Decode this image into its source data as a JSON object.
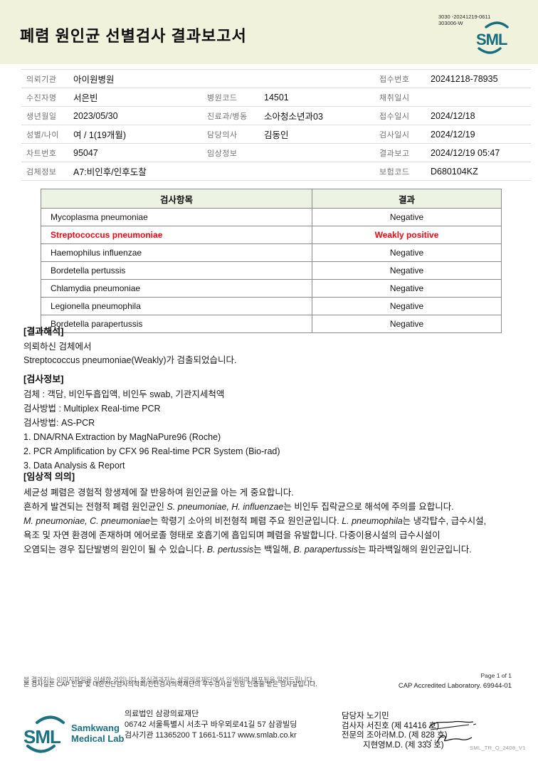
{
  "header": {
    "title": "폐렴 원인균 선별검사 결과보고서",
    "doc_code_line1": "3030 -20241219-0611",
    "doc_code_line2": "303006-W",
    "logo_text": "SML",
    "brand_color": "#156e7f",
    "band_color": "#f0f2db"
  },
  "patient_info": {
    "rows": [
      {
        "c1l": "의뢰기관",
        "c1v": "아이원병원",
        "c2l": "",
        "c2v": "",
        "c3l": "접수번호",
        "c3v": "20241218-78935"
      },
      {
        "c1l": "수진자명",
        "c1v": "서은빈",
        "c2l": "병원코드",
        "c2v": "14501",
        "c3l": "채취일시",
        "c3v": ""
      },
      {
        "c1l": "생년월일",
        "c1v": "2023/05/30",
        "c2l": "진료과/병동",
        "c2v": "소아청소년과03",
        "c3l": "접수일시",
        "c3v": "2024/12/18"
      },
      {
        "c1l": "성별/나이",
        "c1v": "여 / 1(19개월)",
        "c2l": "담당의사",
        "c2v": "김동인",
        "c3l": "검사일시",
        "c3v": "2024/12/19"
      },
      {
        "c1l": "차트번호",
        "c1v": "95047",
        "c2l": "임상정보",
        "c2v": "",
        "c3l": "결과보고",
        "c3v": "2024/12/19 05:47"
      },
      {
        "c1l": "검체정보",
        "c1v": "A7:비인후/인후도찰",
        "c2l": "",
        "c2v": "",
        "c3l": "보험코드",
        "c3v": "D680104KZ"
      }
    ]
  },
  "results_table": {
    "headers": [
      "검사항목",
      "결과"
    ],
    "highlight_color": "#e60914",
    "rows": [
      {
        "item": "Mycoplasma pneumoniae",
        "result": "Negative",
        "highlight": false
      },
      {
        "item": "Streptococcus pneumoniae",
        "result": "Weakly positive",
        "highlight": true
      },
      {
        "item": "Haemophilus influenzae",
        "result": "Negative",
        "highlight": false
      },
      {
        "item": "Bordetella pertussis",
        "result": "Negative",
        "highlight": false
      },
      {
        "item": "Chlamydia pneumoniae",
        "result": "Negative",
        "highlight": false
      },
      {
        "item": "Legionella pneumophila",
        "result": "Negative",
        "highlight": false
      },
      {
        "item": "Bordetella parapertussis",
        "result": "Negative",
        "highlight": false
      }
    ]
  },
  "interpretation": {
    "heading": "[결과해석]",
    "line1": "의뢰하신 검체에서",
    "line2": "Streptococcus pneumoniae(Weakly)가 검출되었습니다."
  },
  "test_info": {
    "heading": "[검사정보]",
    "lines": [
      "검체 : 객담, 비인두흡입액, 비인두 swab, 기관지세척액",
      "검사방법 : Multiplex Real-time PCR",
      "검사방법: AS-PCR",
      "1. DNA/RNA Extraction by MagNaPure96 (Roche)",
      "2. PCR Amplification by CFX 96 Real-time PCR System (Bio-rad)",
      "3. Data Analysis & Report"
    ]
  },
  "clinical": {
    "heading": "[임상적 의의]",
    "lines": [
      [
        {
          "t": "세균성 폐렴은 경험적 항생제에 잘 반응하여 원인균을 아는 게 중요합니다."
        }
      ],
      [
        {
          "t": "흔하게 발견되는 전형적 폐렴 원인균인 "
        },
        {
          "t": "S. pneumoniae, H. influenzae",
          "i": true
        },
        {
          "t": "는 비인두 집락균으로 해석에 주의를 요합니다."
        }
      ],
      [
        {
          "t": "M. pneumoniae, C. pneumoniae",
          "i": true
        },
        {
          "t": "는 학령기 소아의 비전형적 폐렴 주요 원인균입니다. "
        },
        {
          "t": "L. pneumophila",
          "i": true
        },
        {
          "t": "는 냉각탑수, 급수시설,"
        }
      ],
      [
        {
          "t": "욕조 및 자연 환경에 존재하며 에어로졸 형태로 호흡기에 흡입되며 폐렴을 유발합니다. 다중이용시설의 급수시설이"
        }
      ],
      [
        {
          "t": "오염되는 경우 집단발병의 원인이 될 수 있습니다. "
        },
        {
          "t": "B. pertussis",
          "i": true
        },
        {
          "t": "는 백일해, "
        },
        {
          "t": "B. parapertussis",
          "i": true
        },
        {
          "t": "는 파라백일해의 원인균입니다."
        }
      ]
    ]
  },
  "footer": {
    "note1": "본 결과지는 이미지파일을 인쇄한 것입니다. 정식결과지는 삼광의료재단에서 인쇄하며 배포됨을 알려드립니다.",
    "note2": "본 검사실은 CAP 인증 및 대한진단검사의학회/진단검사의학재단의 우수검사실 신임 인증을 받은 검사실입니다.",
    "page_num": "Page 1 of 1",
    "cap_line": "CAP Accredited Laboratory. 69944-01"
  },
  "bottom": {
    "logo_text": "SML",
    "logo_name_line1": "Samkwang",
    "logo_name_line2": "Medical Lab",
    "org": "의료법인 삼광의료재단",
    "address": "06742 서울특별시 서초구 바우뫼로41길 57 삼광빌딩",
    "registration": "검사기관 11365200 T 1661-5117 www.smlab.co.kr",
    "staff": [
      "담당자 노기민",
      "검사자 서진호 (제 41416 호)",
      "전문의 조아라M.D. (제 828 호)",
      "지현영M.D. (제 333 호)"
    ],
    "form_code": "SML_TR_Q_2408_V1"
  }
}
